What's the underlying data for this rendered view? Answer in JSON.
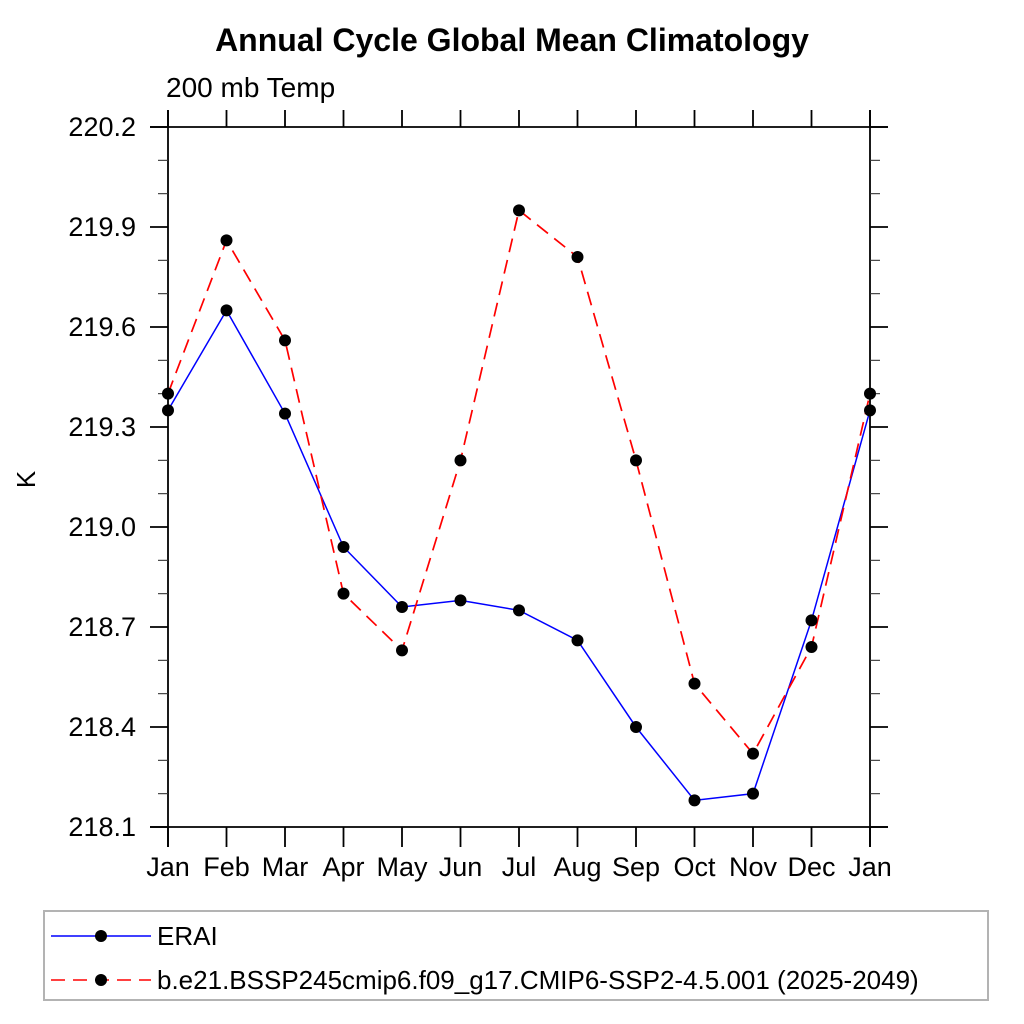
{
  "chart_data": {
    "type": "line",
    "title": "Annual Cycle Global Mean Climatology",
    "subtitle": "200 mb Temp",
    "ylabel": "K",
    "categories": [
      "Jan",
      "Feb",
      "Mar",
      "Apr",
      "May",
      "Jun",
      "Jul",
      "Aug",
      "Sep",
      "Oct",
      "Nov",
      "Dec",
      "Jan"
    ],
    "ylim": [
      218.1,
      220.2
    ],
    "ytick_major": 0.3,
    "ytick_minor": 0.1,
    "ytick_labels": [
      "218.1",
      "218.4",
      "218.7",
      "219.0",
      "219.3",
      "219.6",
      "219.9",
      "220.2"
    ],
    "grid": false,
    "legend_position": "bottom-box",
    "marker": {
      "shape": "circle",
      "color": "#000000"
    },
    "axis_color": "#000000",
    "series": [
      {
        "name": "ERAI",
        "color": "#0000ff",
        "line_style": "solid",
        "values": [
          219.35,
          219.65,
          219.34,
          218.94,
          218.76,
          218.78,
          218.75,
          218.66,
          218.4,
          218.18,
          218.2,
          218.72,
          219.35
        ]
      },
      {
        "name": "b.e21.BSSP245cmip6.f09_g17.CMIP6-SSP2-4.5.001 (2025-2049)",
        "color": "#ff0000",
        "line_style": "dashed",
        "values": [
          219.4,
          219.86,
          219.56,
          218.8,
          218.63,
          219.2,
          219.95,
          219.81,
          219.2,
          218.53,
          218.32,
          218.64,
          219.4
        ]
      }
    ]
  }
}
